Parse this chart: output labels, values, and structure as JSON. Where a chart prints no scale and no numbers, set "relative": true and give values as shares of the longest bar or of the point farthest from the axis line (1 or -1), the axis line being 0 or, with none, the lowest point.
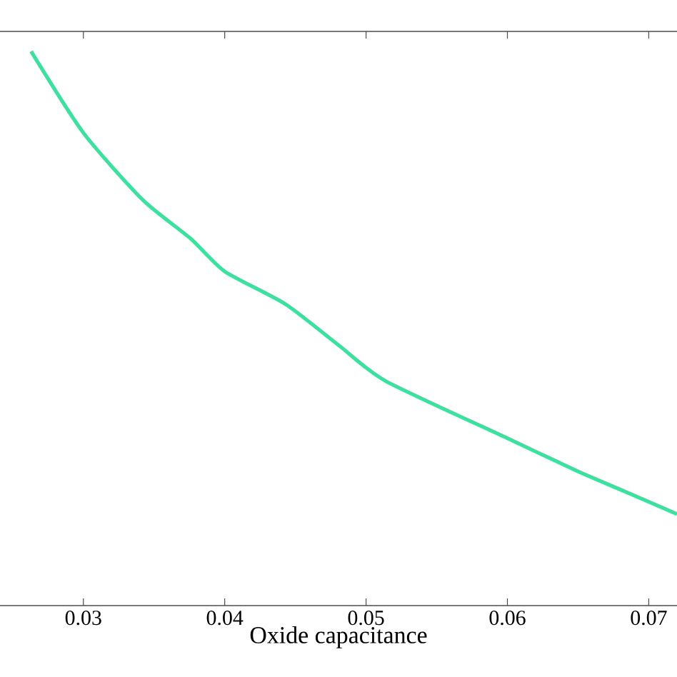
{
  "chart_data": {
    "type": "line",
    "xlabel": "Oxide capacitance",
    "relative": true,
    "x": [
      0.0263,
      0.03,
      0.0342,
      0.0376,
      0.04,
      0.0443,
      0.0481,
      0.0514,
      0.06,
      0.065,
      0.0683,
      0.072
    ],
    "series": [
      {
        "color": "#3ee0a0",
        "values": [
          1,
          0.853,
          0.732,
          0.662,
          0.603,
          0.544,
          0.469,
          0.405,
          0.302,
          0.242,
          0.206,
          0.165
        ]
      }
    ],
    "xlim": [
      0.0241,
      0.072
    ],
    "xticks": [
      0.03,
      0.04,
      0.05,
      0.06,
      0.07
    ],
    "grid": false
  }
}
